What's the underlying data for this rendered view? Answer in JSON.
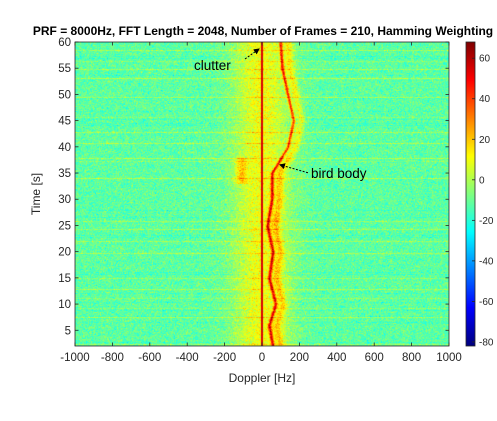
{
  "chart_data": {
    "type": "heatmap",
    "title": "PRF = 8000Hz, FFT Length = 2048, Number of Frames = 210, Hamming Weighting",
    "xlabel": "Doppler [Hz]",
    "ylabel": "Time [s]",
    "xlim": [
      -1000,
      1000
    ],
    "ylim": [
      2,
      60
    ],
    "xticks": [
      -1000,
      -800,
      -600,
      -400,
      -200,
      0,
      200,
      400,
      600,
      800,
      1000
    ],
    "yticks": [
      5,
      10,
      15,
      20,
      25,
      30,
      35,
      40,
      45,
      50,
      55,
      60
    ],
    "colorbar": {
      "range": [
        -82,
        68
      ],
      "ticks": [
        60,
        40,
        20,
        0,
        -20,
        -40,
        -60,
        -80
      ]
    },
    "colormap": "jet",
    "grid": false,
    "annotations": [
      {
        "text": "clutter",
        "x": 0,
        "y": 60
      },
      {
        "text": "bird body",
        "x": 80,
        "y": 36
      }
    ],
    "features": {
      "clutter_line": {
        "doppler_hz": 0,
        "level_db": 55
      },
      "bird_body_track": {
        "level_db": 40,
        "points": [
          [
            2,
            60
          ],
          [
            6,
            40
          ],
          [
            10,
            75
          ],
          [
            15,
            40
          ],
          [
            20,
            60
          ],
          [
            25,
            30
          ],
          [
            30,
            55
          ],
          [
            35,
            55
          ],
          [
            40,
            140
          ],
          [
            45,
            170
          ],
          [
            50,
            140
          ],
          [
            55,
            110
          ],
          [
            60,
            100
          ]
        ]
      },
      "background_level_db": -12,
      "spread_band_hz": [
        -150,
        150
      ]
    }
  }
}
